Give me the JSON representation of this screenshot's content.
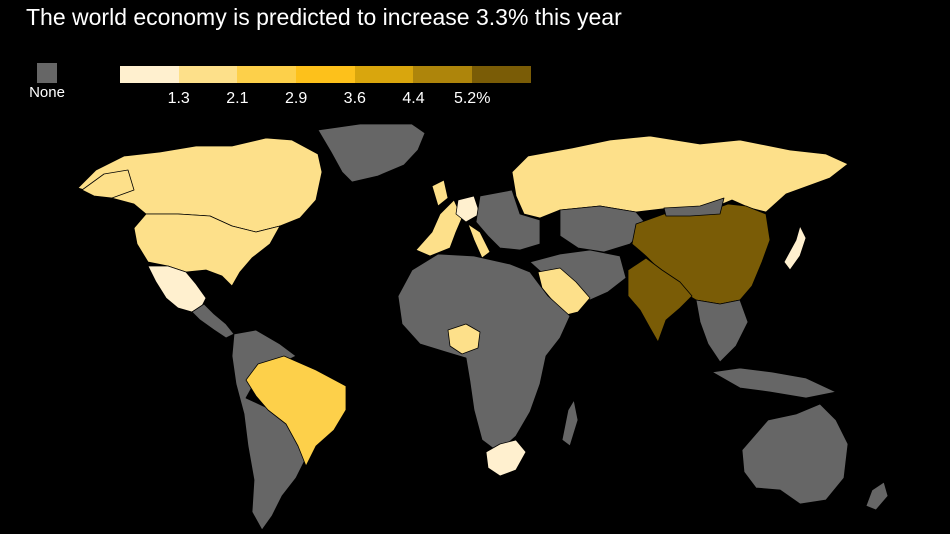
{
  "title": "The world economy is predicted to increase 3.3% this year",
  "legend": {
    "none_label": "None",
    "none_color": "#666666",
    "colors": [
      "#fff0cf",
      "#fde08a",
      "#fdd04a",
      "#fdc11b",
      "#d9a60d",
      "#ae850b",
      "#7a5c06"
    ],
    "ticks": [
      "1.3",
      "2.1",
      "2.9",
      "3.6",
      "4.4",
      "5.2%"
    ]
  },
  "map_regions": [
    {
      "name": "Canada",
      "color": "#fde08a"
    },
    {
      "name": "United States",
      "color": "#fde08a"
    },
    {
      "name": "Mexico",
      "color": "#fff0cf"
    },
    {
      "name": "Brazil",
      "color": "#fdd04a"
    },
    {
      "name": "Russia",
      "color": "#fde08a"
    },
    {
      "name": "China",
      "color": "#7a5c06"
    },
    {
      "name": "India",
      "color": "#7a5c06"
    },
    {
      "name": "Saudi Arabia",
      "color": "#fde08a"
    },
    {
      "name": "Nigeria",
      "color": "#fde08a"
    },
    {
      "name": "South Africa",
      "color": "#fff0cf"
    },
    {
      "name": "Japan",
      "color": "#fff0cf"
    },
    {
      "name": "Germany",
      "color": "#fff0cf"
    },
    {
      "name": "Western Europe",
      "color": "#fde08a"
    },
    {
      "name": "Greenland",
      "color": "#666666"
    },
    {
      "name": "Africa",
      "color": "#666666"
    },
    {
      "name": "Australia",
      "color": "#666666"
    },
    {
      "name": "Southeast Asia",
      "color": "#666666"
    },
    {
      "name": "South America",
      "color": "#666666"
    },
    {
      "name": "Middle East",
      "color": "#666666"
    }
  ]
}
